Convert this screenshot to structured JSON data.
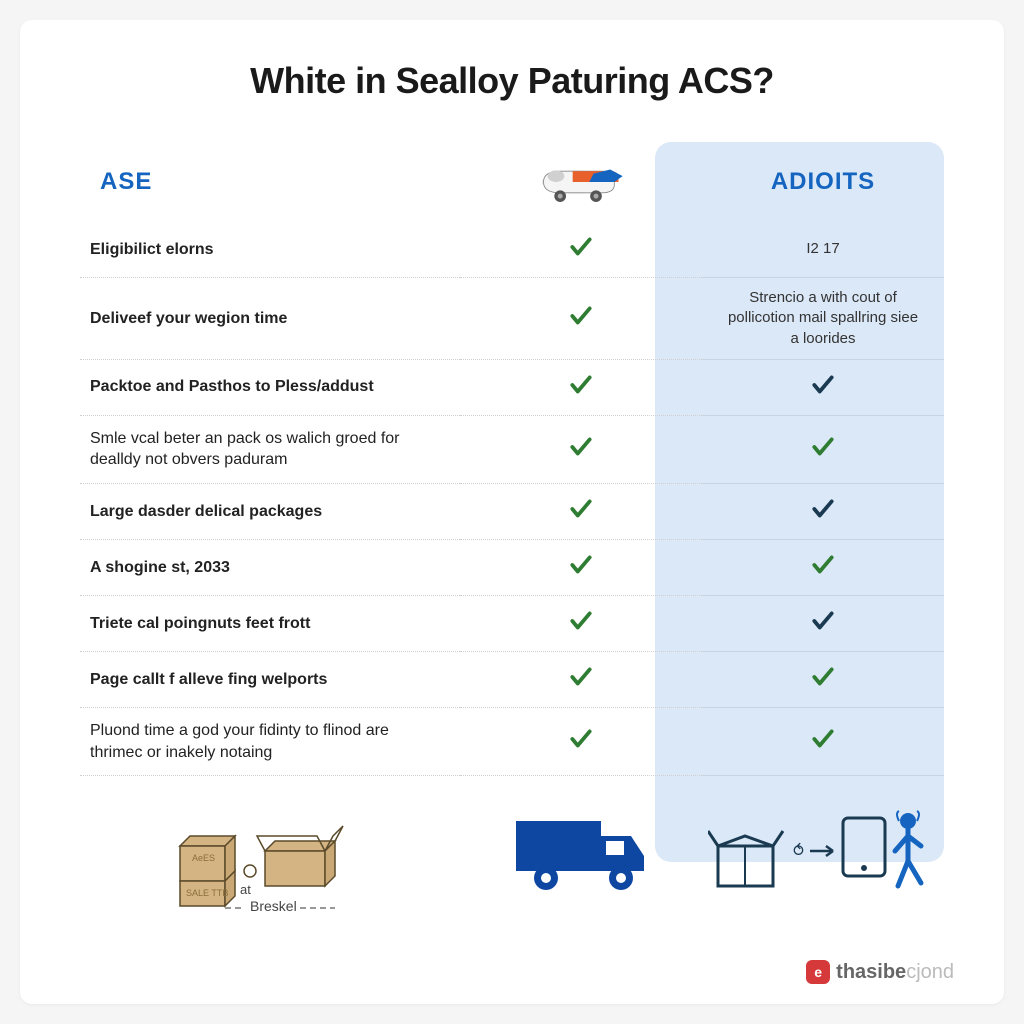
{
  "title": "White in Sealloy Paturing ACS?",
  "columns": {
    "left_header": "ASE",
    "right_header": "ADIOITS"
  },
  "rows": [
    {
      "label": "Eligibilict elorns",
      "bold": true,
      "mid": "check-green",
      "right_type": "text",
      "right_text": "I2 17"
    },
    {
      "label": "Deliveef your wegion time",
      "bold": true,
      "mid": "check-green",
      "right_type": "text",
      "right_text": "Strencio a with cout of pollicotion mail spallring siee a loorides"
    },
    {
      "label": "Packtoe and Pasthos to Pless/addust",
      "bold": true,
      "mid": "check-green",
      "right_type": "check-dark",
      "right_text": ""
    },
    {
      "label": "Smle vcal beter an pack os walich groed for dealldy not obvers paduram",
      "bold": false,
      "mid": "check-green",
      "right_type": "check-green",
      "right_text": ""
    },
    {
      "label": "Large dasder delical packages",
      "bold": true,
      "mid": "check-green",
      "right_type": "check-dark",
      "right_text": ""
    },
    {
      "label": "A shogine st, 2033",
      "bold": true,
      "mid": "check-green",
      "right_type": "check-green",
      "right_text": ""
    },
    {
      "label": "Triete cal poingnuts feet frott",
      "bold": true,
      "mid": "check-green",
      "right_type": "check-dark",
      "right_text": ""
    },
    {
      "label": "Page callt f alleve fing welports",
      "bold": true,
      "mid": "check-green",
      "right_type": "check-green",
      "right_text": ""
    },
    {
      "label": "Pluond time a god your fidinty to flinod are thrimec or inakely notaing",
      "bold": false,
      "mid": "check-green",
      "right_type": "check-green",
      "right_text": ""
    }
  ],
  "colors": {
    "header_blue": "#1565c0",
    "check_green": "#2e7d32",
    "check_dark": "#1a3a52",
    "right_bg": "#dbe8f7",
    "truck_blue": "#0d47a1",
    "box_tan": "#c9a876"
  },
  "bottom_labels": {
    "boxes_text1": "AeES",
    "boxes_text2": "SALE TTB",
    "at_text": "at",
    "breskel": "Breskel"
  },
  "watermark": {
    "brand1": "thasibe",
    "brand2": "cjond"
  }
}
